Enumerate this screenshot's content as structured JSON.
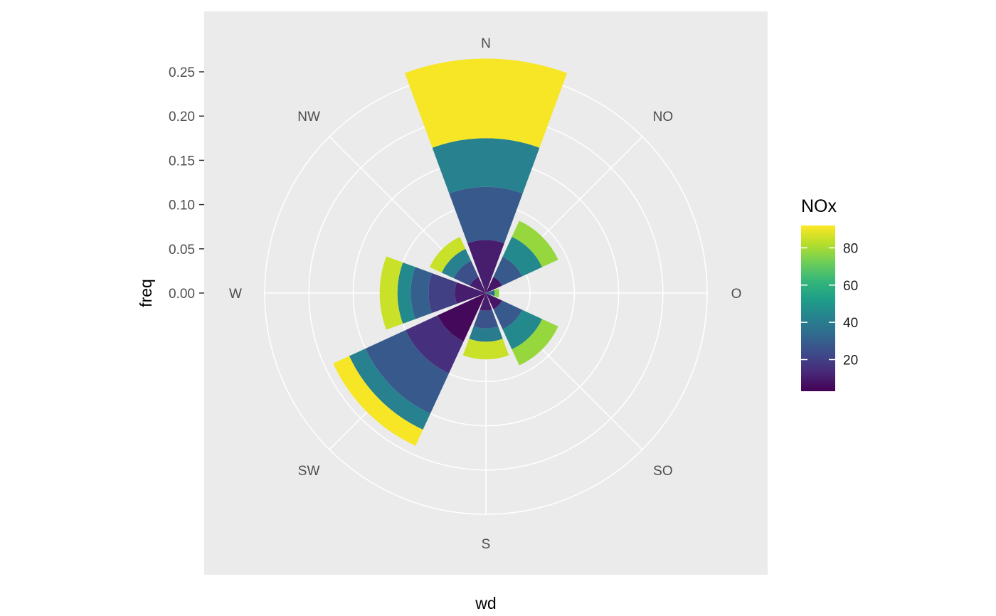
{
  "chart_data": {
    "type": "bar",
    "coord": "polar",
    "xlabel": "wd",
    "ylabel": "freq",
    "categories": [
      "N",
      "NO",
      "O",
      "SO",
      "S",
      "SW",
      "W",
      "NW"
    ],
    "ylim": [
      0,
      0.25
    ],
    "y_ticks": [
      0.0,
      0.05,
      0.1,
      0.15,
      0.2,
      0.25
    ],
    "y_tick_labels": [
      "0.00",
      "0.05",
      "0.10",
      "0.15",
      "0.20",
      "0.25"
    ],
    "stacks": [
      {
        "direction": "N",
        "segments": [
          {
            "freq": 0.06,
            "NOx": 10
          },
          {
            "freq": 0.06,
            "NOx": 28
          },
          {
            "freq": 0.055,
            "NOx": 42
          },
          {
            "freq": 0.09,
            "NOx": 91
          }
        ]
      },
      {
        "direction": "NO",
        "segments": [
          {
            "freq": 0.02,
            "NOx": 8
          },
          {
            "freq": 0.025,
            "NOx": 28
          },
          {
            "freq": 0.025,
            "NOx": 45
          },
          {
            "freq": 0.02,
            "NOx": 78
          }
        ]
      },
      {
        "direction": "O",
        "segments": [
          {
            "freq": 0.01,
            "NOx": 32
          },
          {
            "freq": 0.005,
            "NOx": 76
          }
        ]
      },
      {
        "direction": "SO",
        "segments": [
          {
            "freq": 0.02,
            "NOx": 8
          },
          {
            "freq": 0.025,
            "NOx": 28
          },
          {
            "freq": 0.025,
            "NOx": 45
          },
          {
            "freq": 0.02,
            "NOx": 78
          }
        ]
      },
      {
        "direction": "S",
        "segments": [
          {
            "freq": 0.02,
            "NOx": 10
          },
          {
            "freq": 0.02,
            "NOx": 26
          },
          {
            "freq": 0.015,
            "NOx": 40
          },
          {
            "freq": 0.02,
            "NOx": 85
          }
        ]
      },
      {
        "direction": "SW",
        "segments": [
          {
            "freq": 0.06,
            "NOx": 5
          },
          {
            "freq": 0.04,
            "NOx": 15
          },
          {
            "freq": 0.05,
            "NOx": 28
          },
          {
            "freq": 0.02,
            "NOx": 42
          },
          {
            "freq": 0.02,
            "NOx": 91
          }
        ]
      },
      {
        "direction": "W",
        "segments": [
          {
            "freq": 0.035,
            "NOx": 10
          },
          {
            "freq": 0.03,
            "NOx": 20
          },
          {
            "freq": 0.02,
            "NOx": 30
          },
          {
            "freq": 0.015,
            "NOx": 45
          },
          {
            "freq": 0.02,
            "NOx": 85
          }
        ]
      },
      {
        "direction": "NW",
        "segments": [
          {
            "freq": 0.02,
            "NOx": 10
          },
          {
            "freq": 0.02,
            "NOx": 25
          },
          {
            "freq": 0.015,
            "NOx": 42
          },
          {
            "freq": 0.015,
            "NOx": 85
          }
        ]
      }
    ],
    "legend": {
      "title": "NOx",
      "position": "right",
      "breaks": [
        20,
        40,
        60,
        80
      ],
      "break_labels": [
        "20",
        "40",
        "60",
        "80"
      ],
      "range": [
        3,
        92
      ],
      "palette": "viridis"
    },
    "grid": true,
    "colors": {
      "panel_background": "#ebebeb",
      "grid_line": "#ffffff",
      "viridis": [
        "#440154",
        "#482878",
        "#3e4989",
        "#31688e",
        "#26828e",
        "#1f9e89",
        "#35b779",
        "#6ece58",
        "#b5de2b",
        "#fde725"
      ]
    }
  }
}
